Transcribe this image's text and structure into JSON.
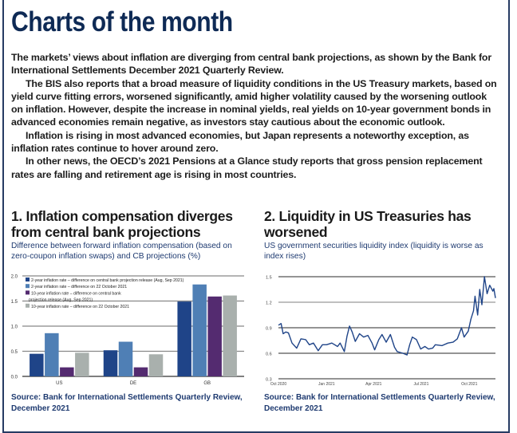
{
  "title": "Charts of the month",
  "paragraphs": [
    "The markets’ views about inflation are diverging from central bank projections, as shown by the Bank for International Settlements December 2021 Quarterly Review.",
    "The BIS also reports that a broad measure of liquidity conditions in the US Treasury markets, based on yield curve fitting errors, worsened significantly, amid higher volatility caused by the worsening outlook on inflation. However, despite the increase in nominal yields, real yields on 10-year government bonds in advanced economies remain negative, as investors stay cautious about the economic outlook.",
    "Inflation is rising in most advanced economies, but Japan represents a noteworthy exception, as inflation rates continue to hover around zero.",
    "In other news, the OECD’s 2021 Pensions at a Glance study reports that gross pension replacement rates are falling and retirement age is rising in most countries."
  ],
  "chart1": {
    "heading": "1. Inflation compensation diverges from central bank projections",
    "subtitle": "Difference between forward inflation compensation (based on zero-coupon inflation swaps) and CB projections (%)",
    "source": "Source: Bank for International Settlements Quarterly Review, December 2021"
  },
  "chart2": {
    "heading": "2. Liquidity in US Treasuries has worsened",
    "subtitle": "US government securities liquidity index (liquidity is worse as index rises)",
    "source": "Source: Bank for International Settlements Quarterly Review, December 2021"
  },
  "chart_data": [
    {
      "type": "bar",
      "categories": [
        "US",
        "DE",
        "GB"
      ],
      "ylim": [
        0,
        2.0
      ],
      "yticks": [
        "0.0",
        "0.5",
        "1.0",
        "1.5",
        "2.0"
      ],
      "grid": true,
      "legend_placement": "top-left",
      "series": [
        {
          "name": "2-year inflation rate – difference on central bank projection release (Aug, Sep 2021)",
          "color": "#1f4488",
          "values": [
            0.45,
            0.52,
            1.49
          ]
        },
        {
          "name": "2-year inflation rate – difference on 22 October 2021",
          "color": "#4f7fb5",
          "values": [
            0.86,
            0.69,
            1.83
          ]
        },
        {
          "name": "10-year inflation rate – difference on central bank projection release (Aug, Sep 2021)",
          "color": "#542b70",
          "values": [
            0.18,
            0.18,
            1.59
          ]
        },
        {
          "name": "10-year inflation rate – difference on 22 October 2021",
          "color": "#a9b0ad",
          "values": [
            0.47,
            0.44,
            1.61
          ]
        }
      ]
    },
    {
      "type": "line",
      "ylim": [
        0.3,
        1.5
      ],
      "yticks": [
        "0.3",
        "0.6",
        "0.9",
        "1.2",
        "1.5"
      ],
      "xticks": [
        [
          "2020-10-01",
          "Oct 2020"
        ],
        [
          "2021-01-01",
          "Jan 2021"
        ],
        [
          "2021-04-01",
          "Apr 2021"
        ],
        [
          "2021-07-01",
          "Jul 2021"
        ],
        [
          "2021-10-01",
          "Oct 2021"
        ]
      ],
      "grid": true,
      "color": "#1f4488",
      "x": [
        "2020-10-01",
        "2020-10-06",
        "2020-10-10",
        "2020-10-15",
        "2020-10-20",
        "2020-10-27",
        "2020-11-05",
        "2020-11-13",
        "2020-11-22",
        "2020-11-29",
        "2020-12-07",
        "2020-12-16",
        "2020-12-24",
        "2021-01-01",
        "2021-01-11",
        "2021-01-22",
        "2021-01-27",
        "2021-02-04",
        "2021-02-09",
        "2021-02-14",
        "2021-02-19",
        "2021-02-25",
        "2021-03-05",
        "2021-03-13",
        "2021-03-21",
        "2021-03-29",
        "2021-04-03",
        "2021-04-11",
        "2021-04-17",
        "2021-04-25",
        "2021-05-03",
        "2021-05-11",
        "2021-05-16",
        "2021-05-27",
        "2021-06-04",
        "2021-06-09",
        "2021-06-14",
        "2021-06-22",
        "2021-06-30",
        "2021-07-08",
        "2021-07-15",
        "2021-07-23",
        "2021-07-28",
        "2021-08-10",
        "2021-08-21",
        "2021-08-31",
        "2021-09-08",
        "2021-09-16",
        "2021-09-21",
        "2021-09-29",
        "2021-10-04",
        "2021-10-09",
        "2021-10-12",
        "2021-10-17",
        "2021-10-21",
        "2021-10-25",
        "2021-10-30",
        "2021-11-04",
        "2021-11-09",
        "2021-11-15",
        "2021-11-17",
        "2021-11-20"
      ],
      "y": [
        0.93,
        0.95,
        0.83,
        0.85,
        0.84,
        0.72,
        0.66,
        0.77,
        0.76,
        0.7,
        0.72,
        0.63,
        0.7,
        0.7,
        0.72,
        0.68,
        0.72,
        0.62,
        0.8,
        0.92,
        0.85,
        0.74,
        0.83,
        0.79,
        0.81,
        0.72,
        0.64,
        0.76,
        0.82,
        0.73,
        0.82,
        0.67,
        0.62,
        0.6,
        0.58,
        0.7,
        0.79,
        0.76,
        0.65,
        0.68,
        0.65,
        0.66,
        0.7,
        0.69,
        0.72,
        0.73,
        0.77,
        0.9,
        0.79,
        0.86,
        1.0,
        1.1,
        1.27,
        1.05,
        1.35,
        1.17,
        1.5,
        1.3,
        1.4,
        1.33,
        1.36,
        1.25
      ]
    }
  ]
}
